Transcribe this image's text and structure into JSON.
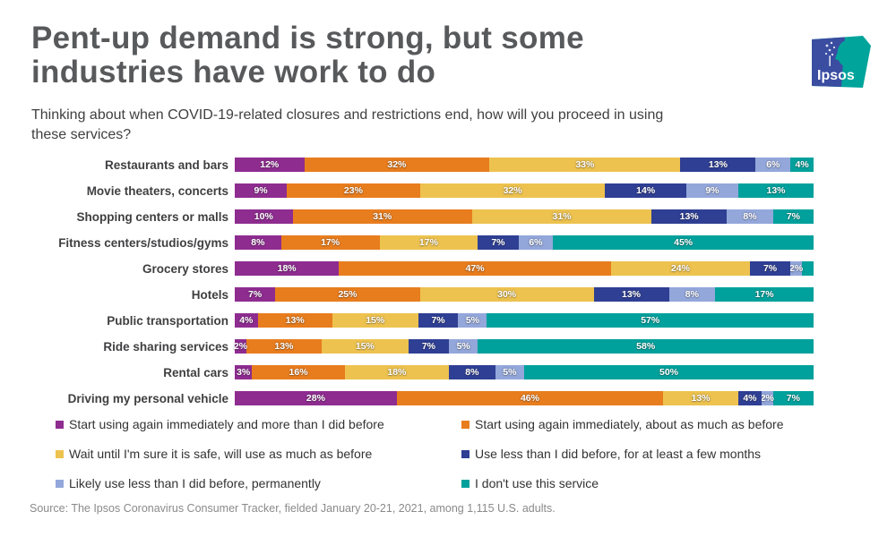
{
  "header": {
    "title_line1": "Pent-up demand is strong, but some",
    "title_line2": "industries have work to do",
    "subtitle_line1": "Thinking about when COVID-19-related closures and restrictions end, how will you proceed in using",
    "subtitle_line2": "these services?",
    "logo_text": "Ipsos",
    "logo": {
      "blue": "#3a4da1",
      "teal": "#00a49b"
    }
  },
  "chart_data": {
    "type": "bar",
    "variant": "stacked-horizontal-100pct",
    "unit": "%",
    "grid": false,
    "legend_position": "bottom, two columns",
    "data_labels": "inside segments, white bold, value + %",
    "categories": [
      "Restaurants and bars",
      "Movie theaters, concerts",
      "Shopping centers or malls",
      "Fitness centers/studios/gyms",
      "Grocery stores",
      "Hotels",
      "Public transportation",
      "Ride sharing services",
      "Rental cars",
      "Driving my personal vehicle"
    ],
    "series": [
      {
        "name": "Start using again immediately and more than I did before",
        "color": "#8e2c90",
        "values": [
          12,
          9,
          10,
          8,
          18,
          7,
          4,
          2,
          3,
          28
        ]
      },
      {
        "name": "Start using again immediately, about as much as before",
        "color": "#e87d1e",
        "values": [
          32,
          23,
          31,
          17,
          47,
          25,
          13,
          13,
          16,
          46
        ]
      },
      {
        "name": "Wait until I'm sure it is safe, will use as much as before",
        "color": "#edc24f",
        "values": [
          33,
          32,
          31,
          17,
          24,
          30,
          15,
          15,
          18,
          13
        ]
      },
      {
        "name": "Use less than I did before, for at least a few months",
        "color": "#2f3f94",
        "values": [
          13,
          14,
          13,
          7,
          7,
          13,
          7,
          7,
          8,
          4
        ]
      },
      {
        "name": "Likely use less than I did before, permanently",
        "color": "#93a7db",
        "values": [
          6,
          9,
          8,
          6,
          2,
          8,
          5,
          5,
          5,
          2
        ]
      },
      {
        "name": "I don't use this service",
        "color": "#00a19c",
        "values": [
          4,
          13,
          7,
          45,
          2,
          17,
          57,
          58,
          50,
          7
        ]
      }
    ],
    "suppressed_labels": [
      {
        "category_index": 4,
        "series_index": 5
      }
    ]
  },
  "source": "Source: The Ipsos Coronavirus Consumer Tracker, fielded January 20-21, 2021, among 1,115 U.S. adults."
}
